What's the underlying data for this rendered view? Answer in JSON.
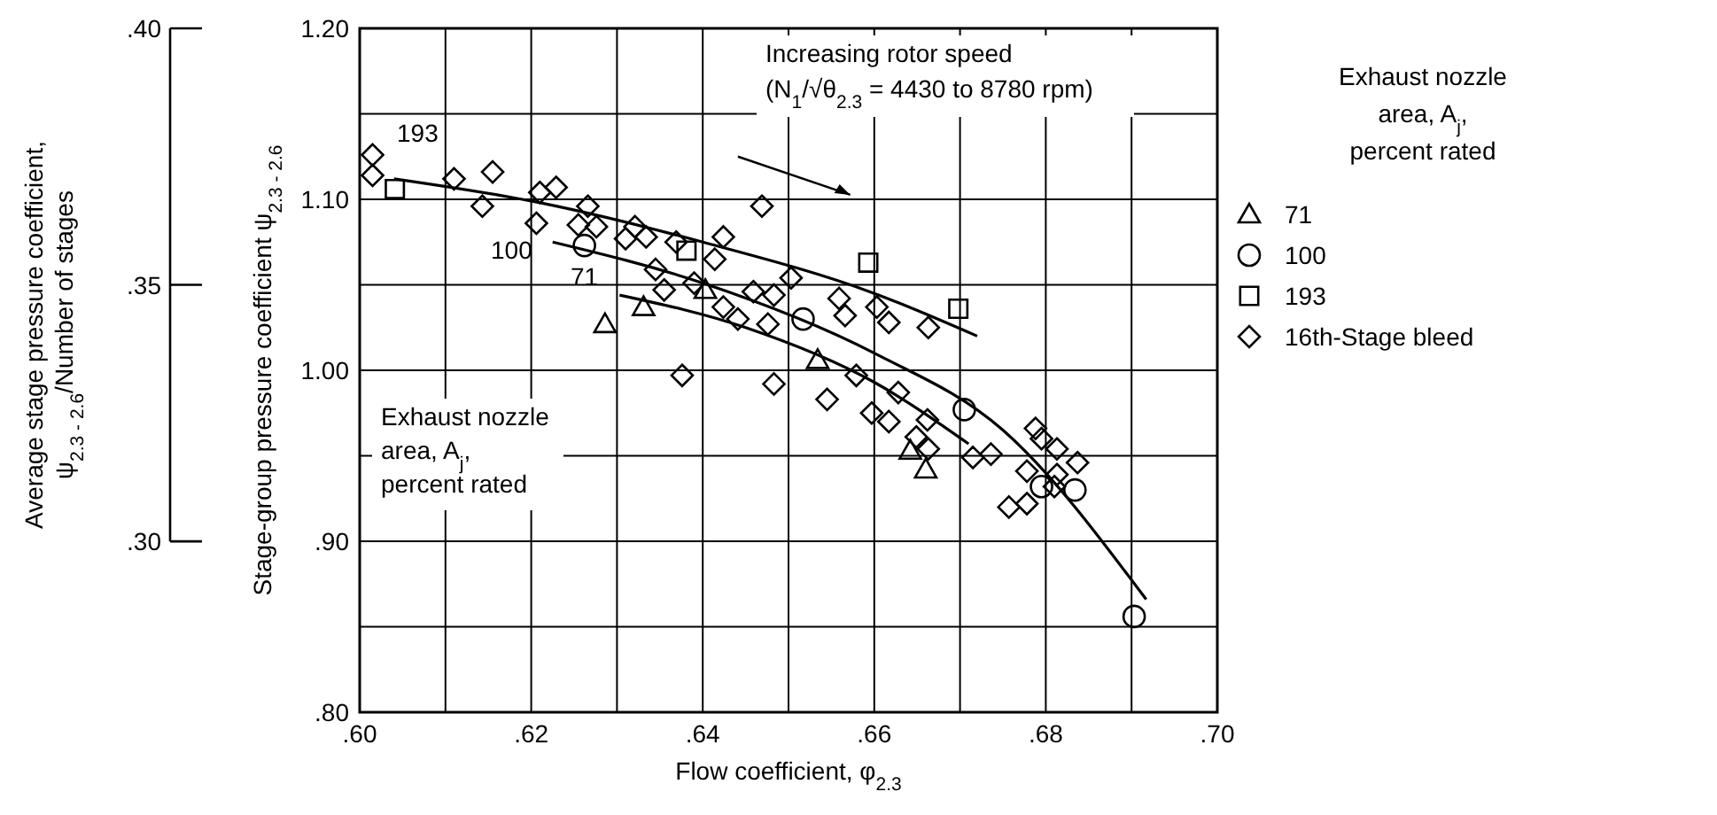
{
  "chart_data": {
    "type": "scatter",
    "xlabel": "Flow coefficient,  φ$_{2.3}$",
    "ylabel": "Stage-group pressure coefficient  ψ$_{2.3 - 2.6}$",
    "y2label": "Average stage pressure coefficient,\nψ$_{2.3 - 2.6}$/Number of stages",
    "legend_title": "Exhaust nozzle\narea, A$_{j}$,\npercent rated",
    "xlim": [
      0.6,
      0.7
    ],
    "xticks": [
      {
        "value": 0.6,
        "label": ".60"
      },
      {
        "value": 0.61,
        "label": null
      },
      {
        "value": 0.62,
        "label": ".62"
      },
      {
        "value": 0.63,
        "label": null
      },
      {
        "value": 0.64,
        "label": ".64"
      },
      {
        "value": 0.65,
        "label": null
      },
      {
        "value": 0.66,
        "label": ".66"
      },
      {
        "value": 0.67,
        "label": null
      },
      {
        "value": 0.68,
        "label": ".68"
      },
      {
        "value": 0.69,
        "label": null
      },
      {
        "value": 0.7,
        "label": ".70"
      }
    ],
    "ylim": [
      0.8,
      1.2
    ],
    "yticks": [
      {
        "value": 0.8,
        "label": ".80"
      },
      {
        "value": 0.85,
        "label": null
      },
      {
        "value": 0.9,
        "label": ".90"
      },
      {
        "value": 0.95,
        "label": null
      },
      {
        "value": 1.0,
        "label": "1.00"
      },
      {
        "value": 1.05,
        "label": null
      },
      {
        "value": 1.1,
        "label": "1.10"
      },
      {
        "value": 1.15,
        "label": null
      },
      {
        "value": 1.2,
        "label": "1.20"
      }
    ],
    "y2lim": [
      0.2667,
      0.4
    ],
    "y2ticks": [
      {
        "value": 0.3,
        "label": ".30"
      },
      {
        "value": 0.35,
        "label": ".35"
      },
      {
        "value": 0.4,
        "label": ".40"
      }
    ],
    "grid": true,
    "legend": "right",
    "annotations": [
      "Increasing rotor speed\n(N$_{1}$/√θ$_{2.3}$ = 4430 to 8780 rpm)",
      "Exhaust nozzle\narea, A$_{j}$,\npercent rated",
      "193",
      "100",
      "71"
    ],
    "series": [
      {
        "name": "71",
        "marker": "triangle",
        "color": "#000000",
        "x": [
          0.6286,
          0.6331,
          0.6403,
          0.6534,
          0.6642,
          0.666
        ],
        "values": [
          1.027,
          1.037,
          1.047,
          1.006,
          0.953,
          0.942
        ]
      },
      {
        "name": "100",
        "marker": "circle",
        "color": "#000000",
        "x": [
          0.6262,
          0.6517,
          0.6705,
          0.6795,
          0.6834,
          0.6903
        ],
        "values": [
          1.073,
          1.03,
          0.977,
          0.932,
          0.93,
          0.856
        ]
      },
      {
        "name": "193",
        "marker": "square",
        "color": "#000000",
        "x": [
          0.6041,
          0.6381,
          0.6593,
          0.6698
        ],
        "values": [
          1.106,
          1.07,
          1.063,
          1.036
        ]
      },
      {
        "name": "16th-Stage bleed",
        "marker": "diamond",
        "color": "#000000",
        "x": [
          0.6015,
          0.6015,
          0.611,
          0.6155,
          0.6143,
          0.621,
          0.6229,
          0.6206,
          0.6266,
          0.6255,
          0.6276,
          0.631,
          0.6321,
          0.6334,
          0.6369,
          0.6424,
          0.6414,
          0.6469,
          0.6345,
          0.6355,
          0.639,
          0.6424,
          0.6441,
          0.6459,
          0.6483,
          0.6476,
          0.6503,
          0.6559,
          0.6566,
          0.6603,
          0.6617,
          0.6663,
          0.6376,
          0.6483,
          0.6545,
          0.6579,
          0.6628,
          0.6597,
          0.6617,
          0.6662,
          0.6649,
          0.6663,
          0.6715,
          0.6736,
          0.6778,
          0.6757,
          0.6778,
          0.6788,
          0.6795,
          0.6813,
          0.6837,
          0.6813,
          0.681
        ],
        "values": [
          1.126,
          1.114,
          1.112,
          1.116,
          1.096,
          1.104,
          1.107,
          1.086,
          1.096,
          1.085,
          1.084,
          1.077,
          1.084,
          1.078,
          1.075,
          1.078,
          1.065,
          1.096,
          1.059,
          1.047,
          1.051,
          1.037,
          1.03,
          1.046,
          1.044,
          1.027,
          1.054,
          1.042,
          1.032,
          1.037,
          1.028,
          1.025,
          0.997,
          0.992,
          0.983,
          0.997,
          0.987,
          0.975,
          0.97,
          0.971,
          0.961,
          0.954,
          0.949,
          0.951,
          0.941,
          0.92,
          0.922,
          0.966,
          0.96,
          0.954,
          0.946,
          0.939,
          0.932
        ]
      },
      {
        "type": "line",
        "color": "#000000",
        "x": [
          0.604,
          0.62,
          0.64,
          0.66,
          0.672
        ],
        "values": [
          1.112,
          1.099,
          1.075,
          1.045,
          1.02
        ]
      },
      {
        "type": "line",
        "color": "#000000",
        "x": [
          0.6225,
          0.64,
          0.66,
          0.675,
          0.6917
        ],
        "values": [
          1.075,
          1.051,
          1.01,
          0.965,
          0.866
        ]
      },
      {
        "type": "line",
        "color": "#000000",
        "x": [
          0.6303,
          0.645,
          0.66,
          0.671
        ],
        "values": [
          1.044,
          1.025,
          0.993,
          0.957
        ]
      }
    ]
  }
}
